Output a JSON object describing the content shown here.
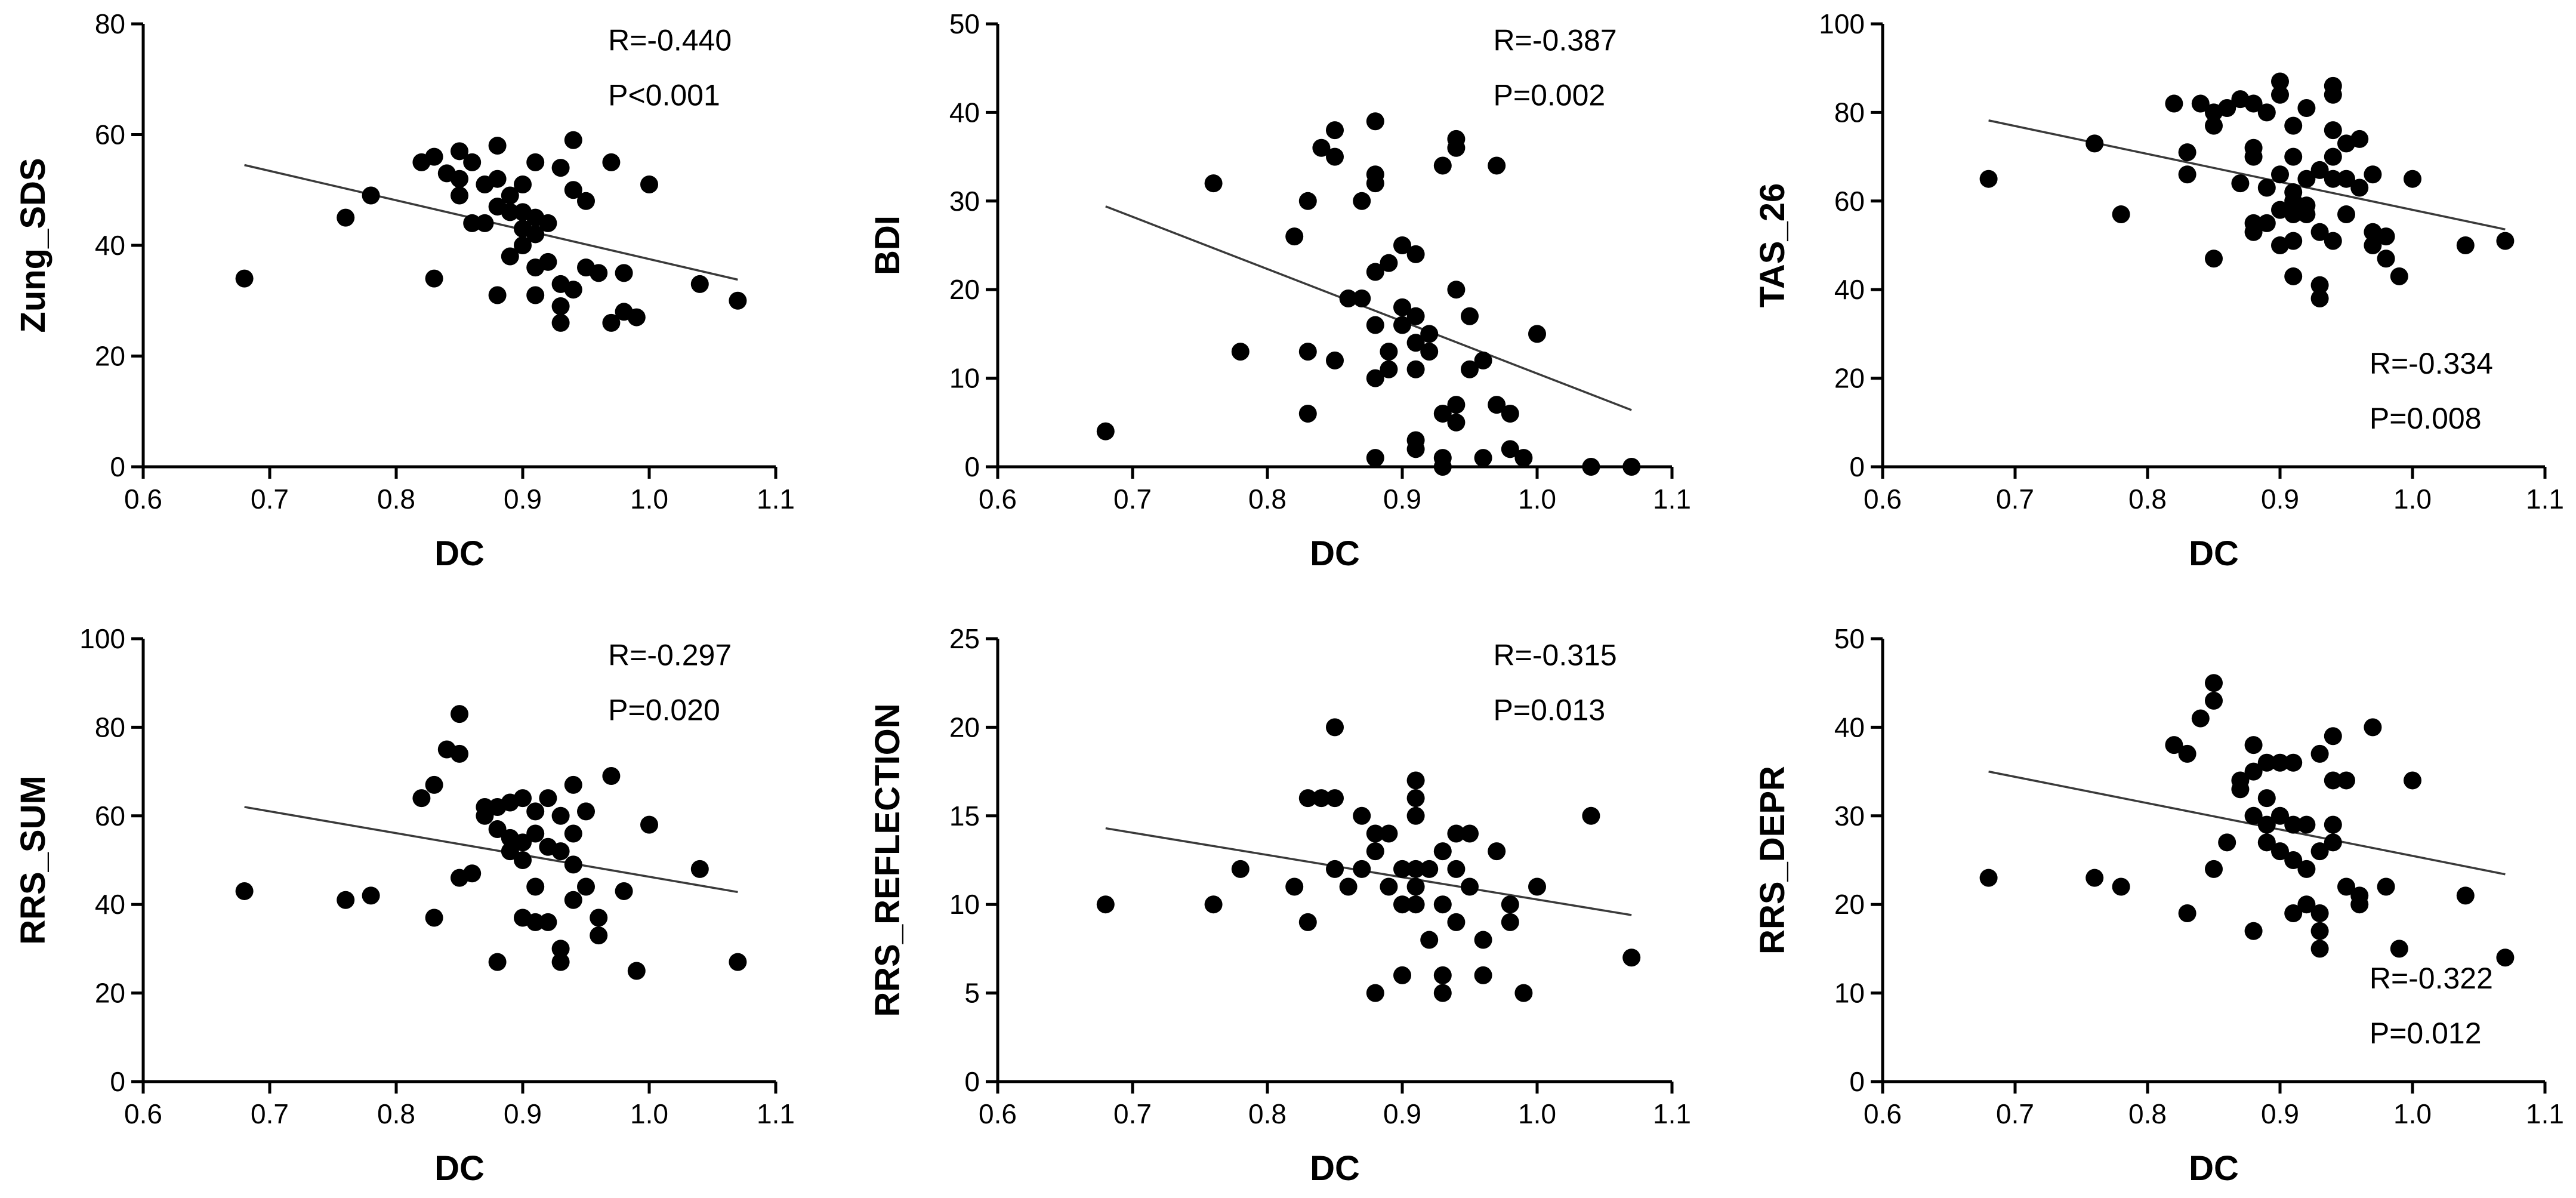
{
  "chart_data": [
    {
      "type": "scatter",
      "xlabel": "DC",
      "ylabel": "Zung_SDS",
      "xlim": [
        0.6,
        1.1
      ],
      "ylim": [
        0,
        80
      ],
      "xticks": [
        "0.6",
        "0.7",
        "0.8",
        "0.9",
        "1.0",
        "1.1"
      ],
      "yticks": [
        "0",
        "20",
        "40",
        "60",
        "80"
      ],
      "annotation": [
        "R=-0.440",
        "P<0.001"
      ],
      "annotation_position": "top-right",
      "trendline": {
        "x": [
          0.68,
          1.07
        ],
        "y": [
          54.5,
          33.8
        ]
      },
      "points": [
        [
          0.68,
          34
        ],
        [
          0.76,
          45
        ],
        [
          0.78,
          49
        ],
        [
          0.82,
          55
        ],
        [
          0.83,
          56
        ],
        [
          0.83,
          34
        ],
        [
          0.84,
          53
        ],
        [
          0.85,
          57
        ],
        [
          0.85,
          52
        ],
        [
          0.85,
          49
        ],
        [
          0.86,
          44
        ],
        [
          0.86,
          55
        ],
        [
          0.87,
          51
        ],
        [
          0.87,
          44
        ],
        [
          0.88,
          58
        ],
        [
          0.88,
          52
        ],
        [
          0.88,
          47
        ],
        [
          0.88,
          31
        ],
        [
          0.89,
          49
        ],
        [
          0.89,
          46
        ],
        [
          0.89,
          38
        ],
        [
          0.9,
          51
        ],
        [
          0.9,
          46
        ],
        [
          0.9,
          43
        ],
        [
          0.9,
          40
        ],
        [
          0.91,
          55
        ],
        [
          0.91,
          45
        ],
        [
          0.91,
          42
        ],
        [
          0.91,
          36
        ],
        [
          0.91,
          31
        ],
        [
          0.92,
          44
        ],
        [
          0.92,
          37
        ],
        [
          0.93,
          54
        ],
        [
          0.93,
          33
        ],
        [
          0.93,
          29
        ],
        [
          0.93,
          26
        ],
        [
          0.94,
          59
        ],
        [
          0.94,
          50
        ],
        [
          0.94,
          32
        ],
        [
          0.95,
          48
        ],
        [
          0.95,
          36
        ],
        [
          0.96,
          35
        ],
        [
          0.97,
          55
        ],
        [
          0.97,
          26
        ],
        [
          0.98,
          35
        ],
        [
          0.98,
          28
        ],
        [
          0.99,
          27
        ],
        [
          1.0,
          51
        ],
        [
          1.04,
          33
        ],
        [
          1.07,
          30
        ]
      ]
    },
    {
      "type": "scatter",
      "xlabel": "DC",
      "ylabel": "BDI",
      "xlim": [
        0.6,
        1.1
      ],
      "ylim": [
        0,
        50
      ],
      "xticks": [
        "0.6",
        "0.7",
        "0.8",
        "0.9",
        "1.0",
        "1.1"
      ],
      "yticks": [
        "0",
        "10",
        "20",
        "30",
        "40",
        "50"
      ],
      "annotation": [
        "R=-0.387",
        "P=0.002"
      ],
      "annotation_position": "top-right",
      "trendline": {
        "x": [
          0.68,
          1.07
        ],
        "y": [
          29.4,
          6.4
        ]
      },
      "points": [
        [
          0.68,
          4
        ],
        [
          0.76,
          32
        ],
        [
          0.78,
          13
        ],
        [
          0.82,
          26
        ],
        [
          0.83,
          30
        ],
        [
          0.83,
          13
        ],
        [
          0.83,
          6
        ],
        [
          0.84,
          36
        ],
        [
          0.85,
          38
        ],
        [
          0.85,
          35
        ],
        [
          0.85,
          12
        ],
        [
          0.86,
          19
        ],
        [
          0.87,
          30
        ],
        [
          0.87,
          19
        ],
        [
          0.88,
          39
        ],
        [
          0.88,
          33
        ],
        [
          0.88,
          32
        ],
        [
          0.88,
          22
        ],
        [
          0.88,
          16
        ],
        [
          0.88,
          10
        ],
        [
          0.88,
          1
        ],
        [
          0.89,
          23
        ],
        [
          0.89,
          13
        ],
        [
          0.89,
          11
        ],
        [
          0.9,
          25
        ],
        [
          0.9,
          18
        ],
        [
          0.9,
          16
        ],
        [
          0.91,
          24
        ],
        [
          0.91,
          17
        ],
        [
          0.91,
          14
        ],
        [
          0.91,
          11
        ],
        [
          0.91,
          3
        ],
        [
          0.91,
          2
        ],
        [
          0.92,
          15
        ],
        [
          0.92,
          13
        ],
        [
          0.93,
          34
        ],
        [
          0.93,
          6
        ],
        [
          0.93,
          1
        ],
        [
          0.93,
          0
        ],
        [
          0.94,
          37
        ],
        [
          0.94,
          36
        ],
        [
          0.94,
          20
        ],
        [
          0.94,
          7
        ],
        [
          0.94,
          5
        ],
        [
          0.95,
          17
        ],
        [
          0.95,
          11
        ],
        [
          0.96,
          12
        ],
        [
          0.96,
          1
        ],
        [
          0.97,
          34
        ],
        [
          0.97,
          7
        ],
        [
          0.98,
          6
        ],
        [
          0.98,
          2
        ],
        [
          0.99,
          1
        ],
        [
          1.0,
          15
        ],
        [
          1.04,
          0
        ],
        [
          1.07,
          0
        ]
      ]
    },
    {
      "type": "scatter",
      "xlabel": "DC",
      "ylabel": "TAS_26",
      "xlim": [
        0.6,
        1.1
      ],
      "ylim": [
        0,
        100
      ],
      "xticks": [
        "0.6",
        "0.7",
        "0.8",
        "0.9",
        "1.0",
        "1.1"
      ],
      "yticks": [
        "0",
        "20",
        "40",
        "60",
        "80",
        "100"
      ],
      "annotation": [
        "R=-0.334",
        "P=0.008"
      ],
      "annotation_position": "bottom-right",
      "trendline": {
        "x": [
          0.68,
          1.07
        ],
        "y": [
          78.2,
          53.6
        ]
      },
      "points": [
        [
          0.68,
          65
        ],
        [
          0.76,
          73
        ],
        [
          0.78,
          57
        ],
        [
          0.82,
          82
        ],
        [
          0.83,
          71
        ],
        [
          0.83,
          66
        ],
        [
          0.84,
          82
        ],
        [
          0.85,
          80
        ],
        [
          0.85,
          77
        ],
        [
          0.85,
          47
        ],
        [
          0.86,
          81
        ],
        [
          0.87,
          83
        ],
        [
          0.87,
          64
        ],
        [
          0.88,
          82
        ],
        [
          0.88,
          72
        ],
        [
          0.88,
          70
        ],
        [
          0.88,
          55
        ],
        [
          0.88,
          53
        ],
        [
          0.89,
          80
        ],
        [
          0.89,
          63
        ],
        [
          0.89,
          55
        ],
        [
          0.9,
          87
        ],
        [
          0.9,
          84
        ],
        [
          0.9,
          66
        ],
        [
          0.9,
          58
        ],
        [
          0.9,
          50
        ],
        [
          0.91,
          77
        ],
        [
          0.91,
          70
        ],
        [
          0.91,
          62
        ],
        [
          0.91,
          60
        ],
        [
          0.91,
          57
        ],
        [
          0.91,
          51
        ],
        [
          0.91,
          43
        ],
        [
          0.92,
          81
        ],
        [
          0.92,
          65
        ],
        [
          0.92,
          59
        ],
        [
          0.92,
          57
        ],
        [
          0.93,
          67
        ],
        [
          0.93,
          53
        ],
        [
          0.93,
          41
        ],
        [
          0.93,
          38
        ],
        [
          0.94,
          86
        ],
        [
          0.94,
          84
        ],
        [
          0.94,
          76
        ],
        [
          0.94,
          70
        ],
        [
          0.94,
          65
        ],
        [
          0.94,
          51
        ],
        [
          0.95,
          73
        ],
        [
          0.95,
          65
        ],
        [
          0.95,
          57
        ],
        [
          0.96,
          74
        ],
        [
          0.96,
          63
        ],
        [
          0.97,
          66
        ],
        [
          0.97,
          53
        ],
        [
          0.97,
          50
        ],
        [
          0.98,
          52
        ],
        [
          0.98,
          47
        ],
        [
          0.99,
          43
        ],
        [
          1.0,
          65
        ],
        [
          1.04,
          50
        ],
        [
          1.07,
          51
        ]
      ]
    },
    {
      "type": "scatter",
      "xlabel": "DC",
      "ylabel": "RRS_SUM",
      "xlim": [
        0.6,
        1.1
      ],
      "ylim": [
        0,
        100
      ],
      "xticks": [
        "0.6",
        "0.7",
        "0.8",
        "0.9",
        "1.0",
        "1.1"
      ],
      "yticks": [
        "0",
        "20",
        "40",
        "60",
        "80",
        "100"
      ],
      "annotation": [
        "R=-0.297",
        "P=0.020"
      ],
      "annotation_position": "top-right",
      "trendline": {
        "x": [
          0.68,
          1.07
        ],
        "y": [
          62.0,
          42.8
        ]
      },
      "points": [
        [
          0.68,
          43
        ],
        [
          0.76,
          41
        ],
        [
          0.78,
          42
        ],
        [
          0.82,
          64
        ],
        [
          0.83,
          67
        ],
        [
          0.83,
          37
        ],
        [
          0.84,
          75
        ],
        [
          0.85,
          83
        ],
        [
          0.85,
          74
        ],
        [
          0.85,
          46
        ],
        [
          0.86,
          47
        ],
        [
          0.87,
          62
        ],
        [
          0.87,
          60
        ],
        [
          0.88,
          62
        ],
        [
          0.88,
          57
        ],
        [
          0.88,
          27
        ],
        [
          0.89,
          63
        ],
        [
          0.89,
          55
        ],
        [
          0.89,
          52
        ],
        [
          0.9,
          64
        ],
        [
          0.9,
          54
        ],
        [
          0.9,
          50
        ],
        [
          0.9,
          37
        ],
        [
          0.91,
          61
        ],
        [
          0.91,
          56
        ],
        [
          0.91,
          44
        ],
        [
          0.91,
          36
        ],
        [
          0.92,
          64
        ],
        [
          0.92,
          53
        ],
        [
          0.92,
          36
        ],
        [
          0.93,
          60
        ],
        [
          0.93,
          52
        ],
        [
          0.93,
          30
        ],
        [
          0.93,
          27
        ],
        [
          0.94,
          67
        ],
        [
          0.94,
          56
        ],
        [
          0.94,
          49
        ],
        [
          0.94,
          41
        ],
        [
          0.95,
          61
        ],
        [
          0.95,
          44
        ],
        [
          0.96,
          37
        ],
        [
          0.96,
          33
        ],
        [
          0.97,
          69
        ],
        [
          0.98,
          43
        ],
        [
          0.99,
          25
        ],
        [
          1.0,
          58
        ],
        [
          1.04,
          48
        ],
        [
          1.07,
          27
        ]
      ]
    },
    {
      "type": "scatter",
      "xlabel": "DC",
      "ylabel": "RRS_REFLECTION",
      "xlim": [
        0.6,
        1.1
      ],
      "ylim": [
        0,
        25
      ],
      "xticks": [
        "0.6",
        "0.7",
        "0.8",
        "0.9",
        "1.0",
        "1.1"
      ],
      "yticks": [
        "0",
        "5",
        "10",
        "15",
        "20",
        "25"
      ],
      "annotation": [
        "R=-0.315",
        "P=0.013"
      ],
      "annotation_position": "top-right",
      "trendline": {
        "x": [
          0.68,
          1.07
        ],
        "y": [
          14.3,
          9.4
        ]
      },
      "points": [
        [
          0.68,
          10
        ],
        [
          0.76,
          10
        ],
        [
          0.78,
          12
        ],
        [
          0.82,
          11
        ],
        [
          0.83,
          9
        ],
        [
          0.83,
          16
        ],
        [
          0.84,
          16
        ],
        [
          0.85,
          20
        ],
        [
          0.85,
          16
        ],
        [
          0.85,
          12
        ],
        [
          0.86,
          11
        ],
        [
          0.87,
          15
        ],
        [
          0.87,
          12
        ],
        [
          0.88,
          14
        ],
        [
          0.88,
          13
        ],
        [
          0.88,
          5
        ],
        [
          0.89,
          14
        ],
        [
          0.89,
          11
        ],
        [
          0.9,
          12
        ],
        [
          0.9,
          10
        ],
        [
          0.9,
          6
        ],
        [
          0.91,
          17
        ],
        [
          0.91,
          16
        ],
        [
          0.91,
          15
        ],
        [
          0.91,
          12
        ],
        [
          0.91,
          11
        ],
        [
          0.91,
          10
        ],
        [
          0.92,
          12
        ],
        [
          0.92,
          8
        ],
        [
          0.93,
          13
        ],
        [
          0.93,
          10
        ],
        [
          0.93,
          6
        ],
        [
          0.93,
          5
        ],
        [
          0.94,
          14
        ],
        [
          0.94,
          12
        ],
        [
          0.94,
          9
        ],
        [
          0.95,
          14
        ],
        [
          0.95,
          11
        ],
        [
          0.96,
          8
        ],
        [
          0.96,
          6
        ],
        [
          0.97,
          13
        ],
        [
          0.98,
          10
        ],
        [
          0.98,
          9
        ],
        [
          0.99,
          5
        ],
        [
          1.0,
          11
        ],
        [
          1.04,
          15
        ],
        [
          1.07,
          7
        ]
      ]
    },
    {
      "type": "scatter",
      "xlabel": "DC",
      "ylabel": "RRS_DEPR",
      "xlim": [
        0.6,
        1.1
      ],
      "ylim": [
        0,
        50
      ],
      "xticks": [
        "0.6",
        "0.7",
        "0.8",
        "0.9",
        "1.0",
        "1.1"
      ],
      "yticks": [
        "0",
        "10",
        "20",
        "30",
        "40",
        "50"
      ],
      "annotation": [
        "R=-0.322",
        "P=0.012"
      ],
      "annotation_position": "bottom-right",
      "trendline": {
        "x": [
          0.68,
          1.07
        ],
        "y": [
          35.0,
          23.4
        ]
      },
      "points": [
        [
          0.68,
          23
        ],
        [
          0.76,
          23
        ],
        [
          0.78,
          22
        ],
        [
          0.82,
          38
        ],
        [
          0.83,
          37
        ],
        [
          0.83,
          19
        ],
        [
          0.84,
          41
        ],
        [
          0.85,
          45
        ],
        [
          0.85,
          43
        ],
        [
          0.85,
          24
        ],
        [
          0.86,
          27
        ],
        [
          0.87,
          34
        ],
        [
          0.87,
          33
        ],
        [
          0.88,
          38
        ],
        [
          0.88,
          35
        ],
        [
          0.88,
          30
        ],
        [
          0.88,
          17
        ],
        [
          0.89,
          36
        ],
        [
          0.89,
          32
        ],
        [
          0.89,
          29
        ],
        [
          0.89,
          27
        ],
        [
          0.9,
          36
        ],
        [
          0.9,
          30
        ],
        [
          0.9,
          26
        ],
        [
          0.91,
          36
        ],
        [
          0.91,
          29
        ],
        [
          0.91,
          25
        ],
        [
          0.91,
          19
        ],
        [
          0.92,
          29
        ],
        [
          0.92,
          24
        ],
        [
          0.92,
          20
        ],
        [
          0.93,
          37
        ],
        [
          0.93,
          26
        ],
        [
          0.93,
          19
        ],
        [
          0.93,
          17
        ],
        [
          0.93,
          15
        ],
        [
          0.94,
          39
        ],
        [
          0.94,
          34
        ],
        [
          0.94,
          29
        ],
        [
          0.94,
          27
        ],
        [
          0.95,
          34
        ],
        [
          0.95,
          22
        ],
        [
          0.96,
          21
        ],
        [
          0.96,
          20
        ],
        [
          0.97,
          40
        ],
        [
          0.98,
          22
        ],
        [
          0.99,
          15
        ],
        [
          1.0,
          34
        ],
        [
          1.04,
          21
        ],
        [
          1.07,
          14
        ]
      ]
    }
  ]
}
